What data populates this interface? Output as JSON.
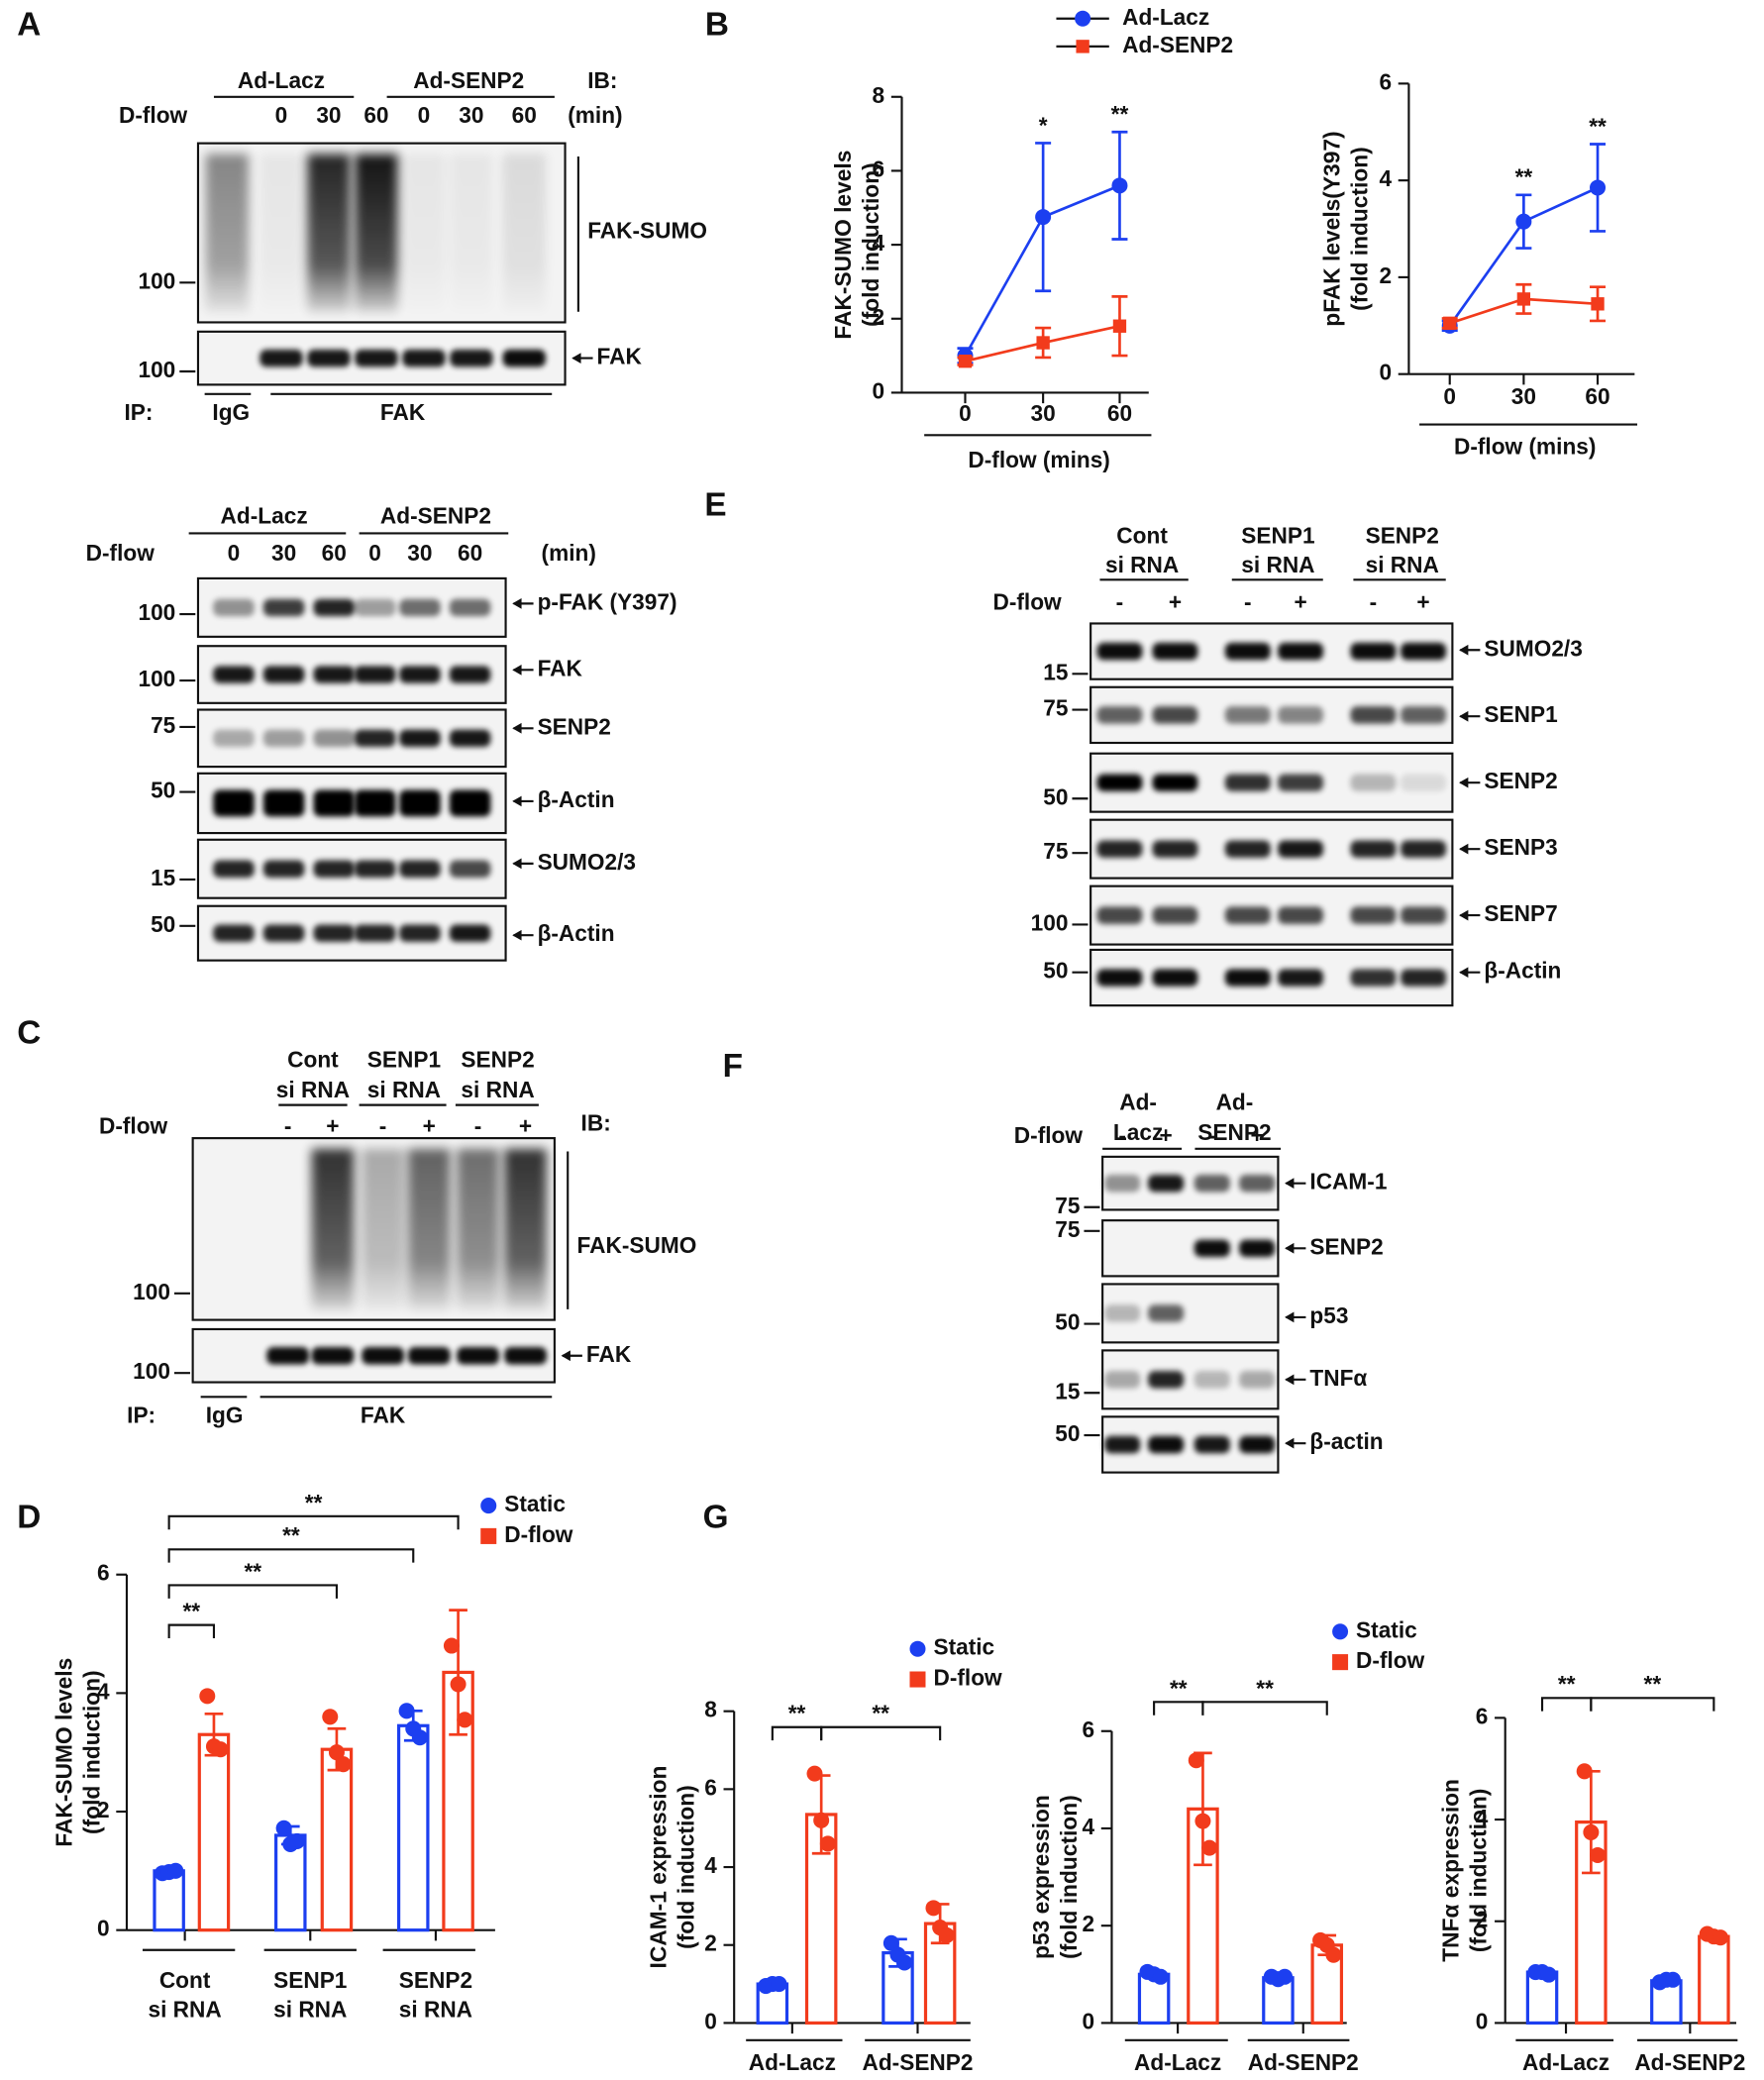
{
  "panel_labels": [
    "A",
    "B",
    "C",
    "D",
    "E",
    "F",
    "G"
  ],
  "blots": {
    "A": {
      "groups": [
        [
          "Ad-Lacz"
        ],
        [
          "Ad-SENP2"
        ]
      ],
      "ib": "IB:",
      "condition": "D-flow",
      "lanes": [
        "0",
        "30",
        "60",
        "0",
        "30",
        "60"
      ],
      "unit": "(min)",
      "strips": [
        {
          "label": "FAK-SUMO",
          "marker": "100"
        },
        {
          "label": "FAK",
          "marker": "100"
        }
      ],
      "ip": {
        "label": "IP:",
        "groups": [
          "IgG",
          "FAK"
        ]
      }
    },
    "B": {
      "groups": [
        [
          "Ad-Lacz"
        ],
        [
          "Ad-SENP2"
        ]
      ],
      "condition": "D-flow",
      "lanes": [
        "0",
        "30",
        "60",
        "0",
        "30",
        "60"
      ],
      "unit": "(min)",
      "strips": [
        {
          "label": "p-FAK (Y397)",
          "marker": "100"
        },
        {
          "label": "FAK",
          "marker": "100"
        },
        {
          "label": "SENP2",
          "marker": "75"
        },
        {
          "label": "β-Actin",
          "marker": "50"
        },
        {
          "label": "SUMO2/3",
          "marker": "15"
        },
        {
          "label": "β-Actin",
          "marker": "50"
        }
      ]
    },
    "C": {
      "groups": [
        [
          "Cont",
          "si RNA"
        ],
        [
          "SENP1",
          "si RNA"
        ],
        [
          "SENP2",
          "si RNA"
        ]
      ],
      "ib": "IB:",
      "condition": "D-flow",
      "lanes": [
        "-",
        "+",
        "-",
        "+",
        "-",
        "+"
      ],
      "strips": [
        {
          "label": "FAK-SUMO",
          "marker": "100"
        },
        {
          "label": "FAK",
          "marker": "100"
        }
      ],
      "ip": {
        "label": "IP:",
        "groups": [
          "IgG",
          "FAK"
        ]
      }
    },
    "E": {
      "groups": [
        [
          "Cont",
          "si RNA"
        ],
        [
          "SENP1",
          "si RNA"
        ],
        [
          "SENP2",
          "si RNA"
        ]
      ],
      "condition": "D-flow",
      "lanes": [
        "-",
        "+",
        "-",
        "+",
        "-",
        "+"
      ],
      "strips": [
        {
          "label": "SUMO2/3",
          "marker": "15"
        },
        {
          "label": "SENP1",
          "marker": "75"
        },
        {
          "label": "SENP2",
          "marker": "50"
        },
        {
          "label": "SENP3",
          "marker": "75"
        },
        {
          "label": "SENP7",
          "marker": "100"
        },
        {
          "label": "β-Actin",
          "marker": "50"
        }
      ]
    },
    "F": {
      "groups": [
        [
          "Ad-",
          "Lacz"
        ],
        [
          "Ad-",
          "SENP2"
        ]
      ],
      "condition": "D-flow",
      "lanes": [
        "-",
        "+",
        "-",
        "+"
      ],
      "strips": [
        {
          "label": "ICAM-1",
          "marker": "75"
        },
        {
          "label": "SENP2",
          "marker": "75"
        },
        {
          "label": "p53",
          "marker": "50"
        },
        {
          "label": "TNFα",
          "marker": "15"
        },
        {
          "label": "β-actin",
          "marker": "50"
        }
      ]
    }
  },
  "chart_data": [
    {
      "type": "line",
      "ylabel": [
        "FAK-SUMO levels",
        "(fold induction)"
      ],
      "xlabel": "D-flow (mins)",
      "categories": [
        "0",
        "30",
        "60"
      ],
      "ylim": [
        0,
        8
      ],
      "yticks": [
        0,
        2,
        4,
        6,
        8
      ],
      "series": [
        {
          "name": "Ad-Lacz",
          "color": "#1c3ff0",
          "marker": "circle",
          "values": [
            1.0,
            4.75,
            5.6
          ],
          "errors": [
            0.2,
            2.0,
            1.45
          ]
        },
        {
          "name": "Ad-SENP2",
          "color": "#f23b1c",
          "marker": "square",
          "values": [
            0.85,
            1.35,
            1.8
          ],
          "errors": [
            0.1,
            0.4,
            0.8
          ]
        }
      ],
      "annotations": [
        "*",
        "**"
      ]
    },
    {
      "type": "line",
      "ylabel": [
        "pFAK levels(Y397)",
        "(fold induction)"
      ],
      "xlabel": "D-flow (mins)",
      "categories": [
        "0",
        "30",
        "60"
      ],
      "ylim": [
        0,
        6
      ],
      "yticks": [
        0,
        2,
        4,
        6
      ],
      "series": [
        {
          "color": "#1c3ff0",
          "marker": "circle",
          "values": [
            1.0,
            3.15,
            3.85
          ],
          "errors": [
            0.1,
            0.55,
            0.9
          ]
        },
        {
          "color": "#f23b1c",
          "marker": "square",
          "values": [
            1.05,
            1.55,
            1.45
          ],
          "errors": [
            0.1,
            0.3,
            0.35
          ]
        }
      ],
      "annotations": [
        "**",
        "**"
      ]
    },
    {
      "type": "bar",
      "ylabel": [
        "FAK-SUMO levels",
        "(fold induction)"
      ],
      "categories": [
        [
          "Cont",
          "si RNA"
        ],
        [
          "SENP1",
          "si RNA"
        ],
        [
          "SENP2",
          "si RNA"
        ]
      ],
      "ylim": [
        0,
        6
      ],
      "yticks": [
        0,
        2,
        4,
        6
      ],
      "series": [
        {
          "name": "Static",
          "color": "#1c3ff0",
          "marker": "circle",
          "values": [
            1.0,
            1.6,
            3.45
          ],
          "errors": [
            0.05,
            0.15,
            0.25
          ],
          "points": [
            [
              0.96,
              0.98,
              1.0
            ],
            [
              1.72,
              1.45,
              1.5
            ],
            [
              3.7,
              3.4,
              3.25
            ]
          ]
        },
        {
          "name": "D-flow",
          "color": "#f23b1c",
          "marker": "square",
          "values": [
            3.3,
            3.05,
            4.35
          ],
          "errors": [
            0.35,
            0.35,
            1.05
          ],
          "points": [
            [
              3.95,
              3.1,
              3.05
            ],
            [
              3.6,
              3.0,
              2.8
            ],
            [
              4.8,
              4.15,
              3.55
            ]
          ]
        }
      ],
      "annotations": [
        "**",
        "**",
        "**",
        "**"
      ]
    },
    {
      "type": "bar",
      "ylabel": [
        "ICAM-1 expression",
        "(fold induction)"
      ],
      "categories": [
        "Ad-Lacz",
        "Ad-SENP2"
      ],
      "ylim": [
        0,
        8
      ],
      "yticks": [
        0,
        2,
        4,
        6,
        8
      ],
      "series": [
        {
          "name": "Static",
          "color": "#1c3ff0",
          "marker": "circle",
          "values": [
            1.0,
            1.8
          ],
          "errors": [
            0.1,
            0.35
          ],
          "points": [
            [
              0.95,
              1.0,
              1.0
            ],
            [
              2.05,
              1.75,
              1.55
            ]
          ]
        },
        {
          "name": "D-flow",
          "color": "#f23b1c",
          "marker": "square",
          "values": [
            5.35,
            2.55
          ],
          "errors": [
            1.0,
            0.5
          ],
          "points": [
            [
              6.4,
              5.2,
              4.6
            ],
            [
              2.95,
              2.45,
              2.25
            ]
          ]
        }
      ],
      "annotations": [
        "**",
        "**"
      ]
    },
    {
      "type": "bar",
      "ylabel": [
        "p53 expression",
        "(fold induction)"
      ],
      "categories": [
        "Ad-Lacz",
        "Ad-SENP2"
      ],
      "ylim": [
        0,
        6
      ],
      "yticks": [
        0,
        2,
        4,
        6
      ],
      "series": [
        {
          "name": "Static",
          "color": "#1c3ff0",
          "marker": "circle",
          "values": [
            1.0,
            0.93
          ],
          "errors": [
            0.08,
            0.05
          ],
          "points": [
            [
              1.05,
              1.0,
              0.95
            ],
            [
              0.95,
              0.9,
              0.95
            ]
          ]
        },
        {
          "name": "D-flow",
          "color": "#f23b1c",
          "marker": "square",
          "values": [
            4.4,
            1.6
          ],
          "errors": [
            1.15,
            0.2
          ],
          "points": [
            [
              5.4,
              4.15,
              3.6
            ],
            [
              1.7,
              1.6,
              1.4
            ]
          ]
        }
      ],
      "annotations": [
        "**",
        "**"
      ]
    },
    {
      "type": "bar",
      "ylabel": [
        "TNFα expression",
        "(fold induction)"
      ],
      "categories": [
        "Ad-Lacz",
        "Ad-SENP2"
      ],
      "ylim": [
        0,
        6
      ],
      "yticks": [
        0,
        2,
        4,
        6
      ],
      "series": [
        {
          "color": "#1c3ff0",
          "marker": "circle",
          "values": [
            1.0,
            0.83
          ],
          "errors": [
            0.05,
            0.05
          ],
          "points": [
            [
              1.0,
              1.0,
              0.95
            ],
            [
              0.8,
              0.85,
              0.85
            ]
          ]
        },
        {
          "color": "#f23b1c",
          "marker": "square",
          "values": [
            3.95,
            1.7
          ],
          "errors": [
            1.0,
            0.07
          ],
          "points": [
            [
              4.95,
              3.75,
              3.3
            ],
            [
              1.75,
              1.7,
              1.68
            ]
          ]
        }
      ],
      "annotations": [
        "**",
        "**"
      ]
    }
  ]
}
